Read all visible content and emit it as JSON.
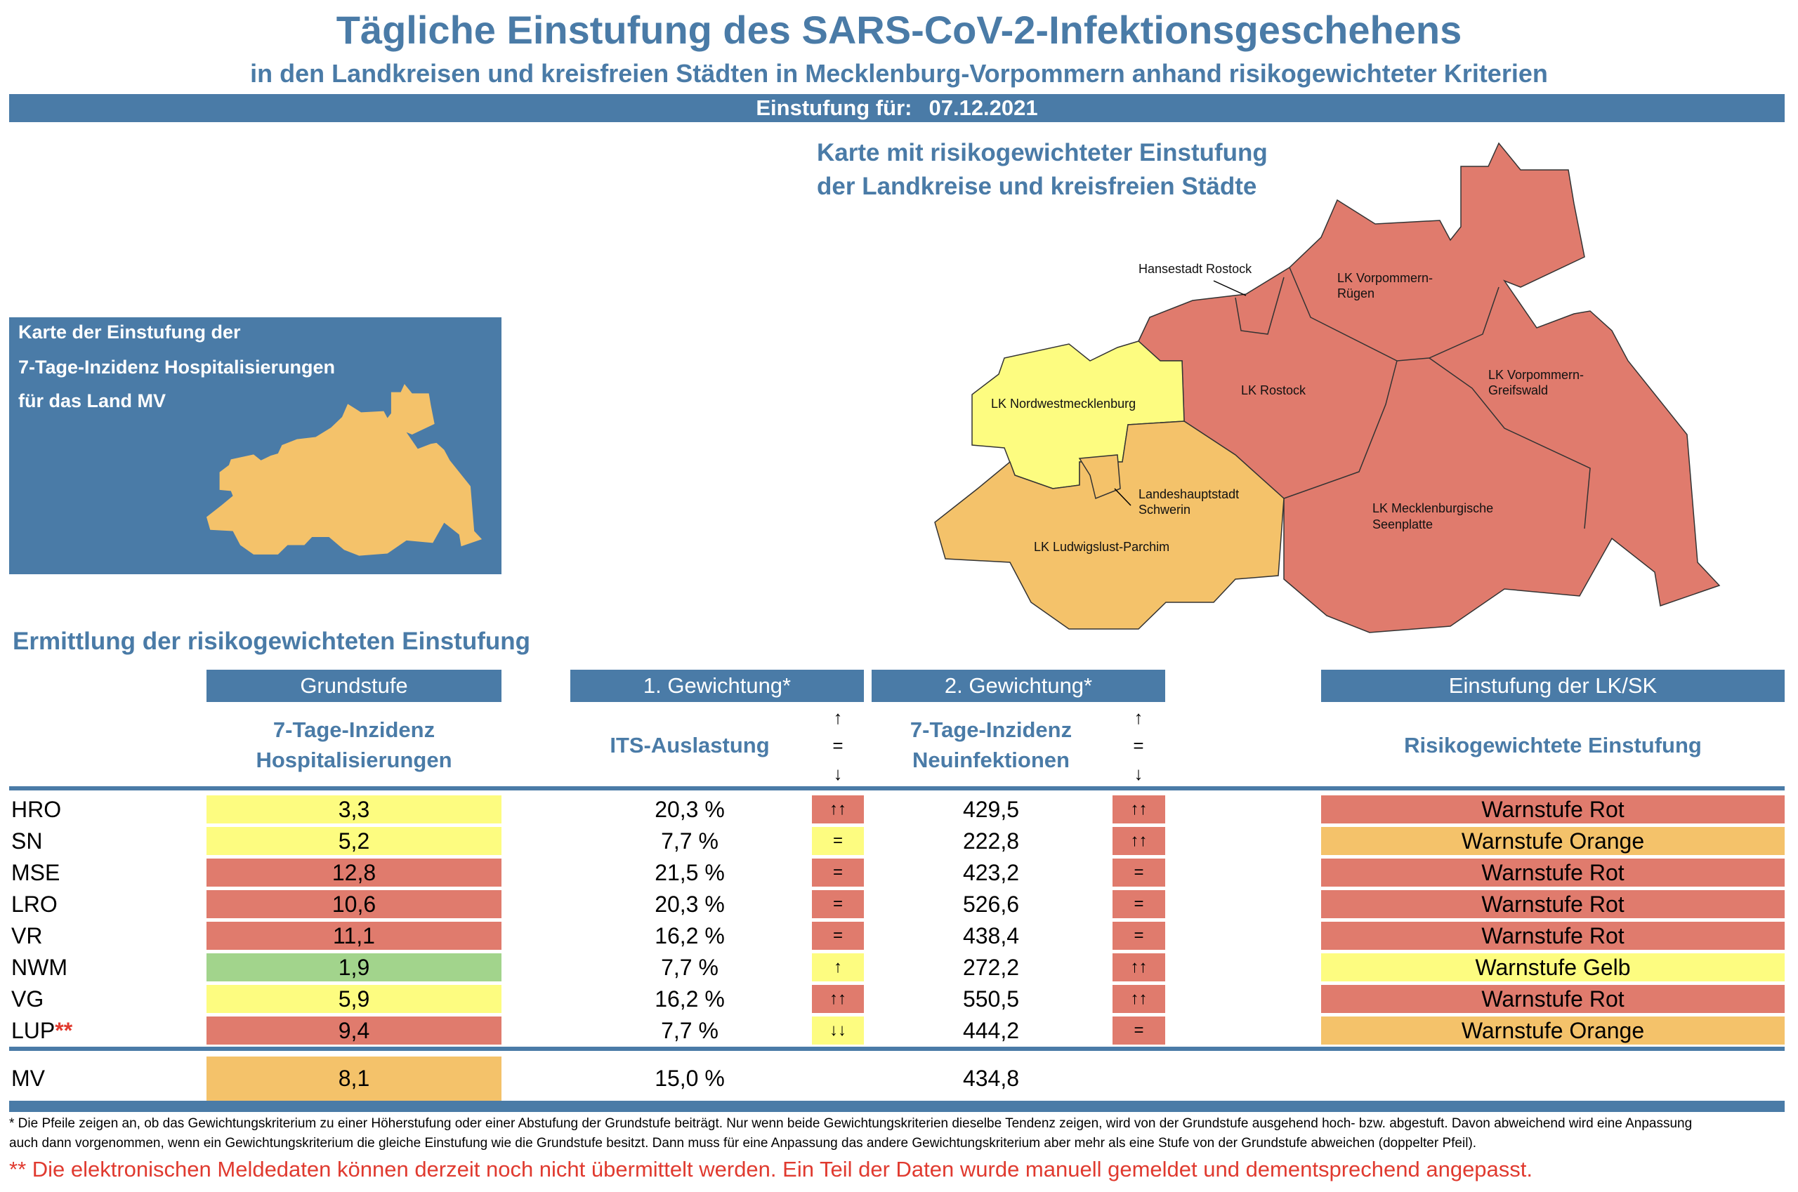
{
  "header": {
    "title": "Tägliche Einstufung des SARS-CoV-2-Infektionsgeschehens",
    "subtitle": "in den Landkreisen und kreisfreien Städten in Mecklenburg-Vorpommern anhand risikogewichteter Kriterien",
    "date_label": "Einstufung für:",
    "date": "07.12.2021"
  },
  "left_box": {
    "lines": [
      "Karte der Einstufung der",
      "7-Tage-Inzidenz Hospitalisierungen",
      "für das Land MV"
    ]
  },
  "map": {
    "title_lines": [
      "Karte mit risikogewichteter Einstufung",
      "der Landkreise und kreisfreien Städte"
    ],
    "labels": {
      "hro": "Hansestadt Rostock",
      "vr1": "LK Vorpommern-",
      "vr2": "Rügen",
      "lro": "LK Rostock",
      "vg1": "LK Vorpommern-",
      "vg2": "Greifswald",
      "nwm": "LK Nordwestmecklenburg",
      "sn1": "Landeshauptstadt",
      "sn2": "Schwerin",
      "mse1": "LK Mecklenburgische",
      "mse2": "Seenplatte",
      "lup": "LK Ludwigslust-Parchim"
    }
  },
  "colors": {
    "blue": "#4a7ba7",
    "red": "#e07b6d",
    "orange": "#f4c26a",
    "yellow": "#fdfc80",
    "green": "#a2d48c"
  },
  "section_title": "Ermittlung der risikogewichteten Einstufung",
  "table": {
    "headers": {
      "grundstufe": "Grundstufe",
      "gew1": "1. Gewichtung*",
      "gew2": "2. Gewichtung*",
      "einstufung": "Einstufung der LK/SK"
    },
    "subheaders": {
      "grund1": "7-Tage-Inzidenz",
      "grund2": "Hospitalisierungen",
      "its": "ITS-Auslastung",
      "neu1": "7-Tage-Inzidenz",
      "neu2": "Neuinfektionen",
      "risk": "Risikogewichtete Einstufung",
      "arrow_up": "↑",
      "arrow_eq": "=",
      "arrow_down": "↓"
    },
    "rows": [
      {
        "region": "HRO",
        "star": "",
        "hosp": "3,3",
        "hosp_color": "yellow",
        "its": "20,3 %",
        "its_trend": "↑↑",
        "its_color": "red",
        "neu": "429,5",
        "neu_trend": "↑↑",
        "neu_color": "red",
        "level": "Warnstufe Rot",
        "level_color": "red"
      },
      {
        "region": "SN",
        "star": "",
        "hosp": "5,2",
        "hosp_color": "yellow",
        "its": "7,7 %",
        "its_trend": "=",
        "its_color": "yellow",
        "neu": "222,8",
        "neu_trend": "↑↑",
        "neu_color": "red",
        "level": "Warnstufe Orange",
        "level_color": "orange"
      },
      {
        "region": "MSE",
        "star": "",
        "hosp": "12,8",
        "hosp_color": "red",
        "its": "21,5 %",
        "its_trend": "=",
        "its_color": "red",
        "neu": "423,2",
        "neu_trend": "=",
        "neu_color": "red",
        "level": "Warnstufe Rot",
        "level_color": "red"
      },
      {
        "region": "LRO",
        "star": "",
        "hosp": "10,6",
        "hosp_color": "red",
        "its": "20,3 %",
        "its_trend": "=",
        "its_color": "red",
        "neu": "526,6",
        "neu_trend": "=",
        "neu_color": "red",
        "level": "Warnstufe Rot",
        "level_color": "red"
      },
      {
        "region": "VR",
        "star": "",
        "hosp": "11,1",
        "hosp_color": "red",
        "its": "16,2 %",
        "its_trend": "=",
        "its_color": "red",
        "neu": "438,4",
        "neu_trend": "=",
        "neu_color": "red",
        "level": "Warnstufe Rot",
        "level_color": "red"
      },
      {
        "region": "NWM",
        "star": "",
        "hosp": "1,9",
        "hosp_color": "green",
        "its": "7,7 %",
        "its_trend": "↑",
        "its_color": "yellow",
        "neu": "272,2",
        "neu_trend": "↑↑",
        "neu_color": "red",
        "level": "Warnstufe Gelb",
        "level_color": "yellow"
      },
      {
        "region": "VG",
        "star": "",
        "hosp": "5,9",
        "hosp_color": "yellow",
        "its": "16,2 %",
        "its_trend": "↑↑",
        "its_color": "red",
        "neu": "550,5",
        "neu_trend": "↑↑",
        "neu_color": "red",
        "level": "Warnstufe Rot",
        "level_color": "red"
      },
      {
        "region": "LUP",
        "star": "**",
        "hosp": "9,4",
        "hosp_color": "red",
        "its": "7,7 %",
        "its_trend": "↓↓",
        "its_color": "yellow",
        "neu": "444,2",
        "neu_trend": "=",
        "neu_color": "red",
        "level": "Warnstufe Orange",
        "level_color": "orange"
      }
    ],
    "total": {
      "region": "MV",
      "hosp": "8,1",
      "hosp_color": "orange",
      "its": "15,0 %",
      "neu": "434,8"
    }
  },
  "footnote": [
    "* Die Pfeile zeigen an, ob das Gewichtungskriterium zu einer Höherstufung oder einer Abstufung der Grundstufe beiträgt. Nur wenn beide Gewichtungskriterien dieselbe Tendenz zeigen, wird von der Grundstufe ausgehend hoch- bzw. abgestuft.  Davon abweichend wird eine Anpassung",
    "auch dann vorgenommen, wenn ein Gewichtungskriterium die gleiche Einstufung wie die Grundstufe besitzt. Dann muss für eine Anpassung das andere Gewichtungskriterium aber mehr als eine Stufe von der Grundstufe abweichen (doppelter Pfeil)."
  ],
  "note": "** Die elektronischen Meldedaten können derzeit noch nicht übermittelt werden. Ein Teil der Daten wurde manuell gemeldet und dementsprechend angepasst."
}
